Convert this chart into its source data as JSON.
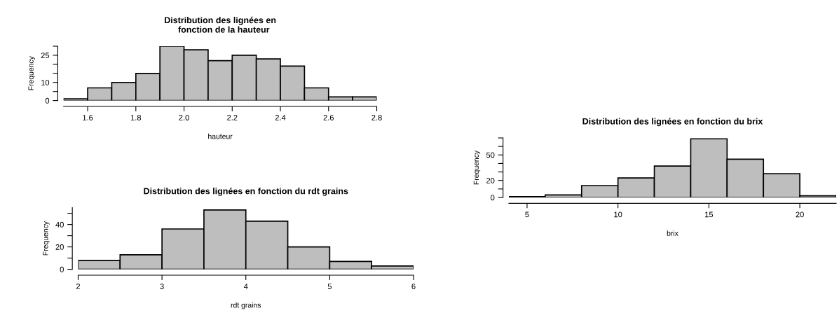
{
  "chart_data": [
    {
      "type": "histogram",
      "title": "Distribution des lignées en\n   fonction de la hauteur",
      "xlabel": "hauteur",
      "ylabel": "Frequency",
      "color": "#bebebe",
      "bins": [
        1.5,
        1.6,
        1.7,
        1.8,
        1.9,
        2.0,
        2.1,
        2.2,
        2.3,
        2.4,
        2.5,
        2.6,
        2.7,
        2.8
      ],
      "values": [
        1,
        7,
        10,
        15,
        30,
        28,
        22,
        25,
        23,
        19,
        7,
        2,
        2
      ],
      "xlim": [
        1.5,
        2.8
      ],
      "ylim": [
        0,
        30
      ],
      "xticks": [
        {
          "value": 1.6,
          "label": "1.6"
        },
        {
          "value": 1.8,
          "label": "1.8"
        },
        {
          "value": 2.0,
          "label": "2.0"
        },
        {
          "value": 2.2,
          "label": "2.2"
        },
        {
          "value": 2.4,
          "label": "2.4"
        },
        {
          "value": 2.6,
          "label": "2.6"
        },
        {
          "value": 2.8,
          "label": "2.8"
        }
      ],
      "yticks": [
        0,
        {
          "value": 5,
          "label": null
        },
        10,
        {
          "value": 15,
          "label": null
        },
        {
          "value": 20,
          "label": null
        },
        25,
        {
          "value": 30,
          "label": null
        }
      ]
    },
    {
      "type": "histogram",
      "title": "Distribution des lignées en fonction du rdt grains",
      "xlabel": "rdt grains",
      "ylabel": "Frequency",
      "color": "#bebebe",
      "bins": [
        2,
        2.5,
        3,
        3.5,
        4,
        4.5,
        5,
        5.5,
        6
      ],
      "values": [
        8,
        13,
        36,
        53,
        43,
        20,
        7,
        3
      ],
      "xlim": [
        2,
        6
      ],
      "ylim": [
        0,
        55
      ],
      "xticks": [
        2,
        3,
        4,
        5,
        6
      ],
      "yticks": [
        0,
        {
          "value": 10,
          "label": null
        },
        20,
        {
          "value": 30,
          "label": null
        },
        40,
        {
          "value": 50,
          "label": null
        }
      ]
    },
    {
      "type": "histogram",
      "title": "Distribution des lignées en fonction du brix",
      "xlabel": "brix",
      "ylabel": "Frequency",
      "color": "#bebebe",
      "bins": [
        4,
        6,
        8,
        10,
        12,
        14,
        16,
        18,
        20,
        22
      ],
      "values": [
        1,
        3,
        14,
        23,
        37,
        69,
        45,
        28,
        2
      ],
      "xlim": [
        4,
        22
      ],
      "ylim": [
        0,
        70
      ],
      "xticks": [
        5,
        10,
        15,
        20
      ],
      "yticks": [
        0,
        {
          "value": 10,
          "label": null
        },
        20,
        {
          "value": 30,
          "label": null
        },
        {
          "value": 40,
          "label": null
        },
        50,
        {
          "value": 60,
          "label": null
        },
        {
          "value": 70,
          "label": null
        }
      ]
    }
  ]
}
